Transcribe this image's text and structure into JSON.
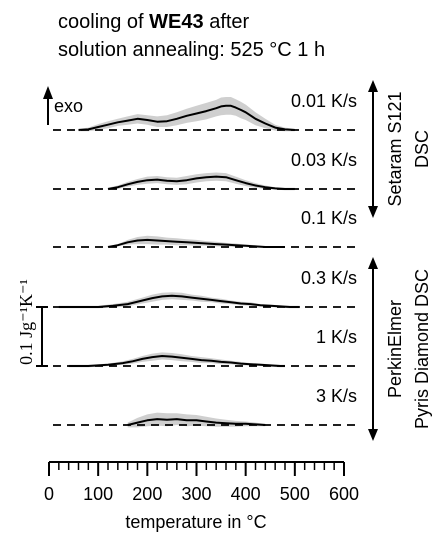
{
  "chart_data": {
    "type": "line",
    "title_line1_prefix": "cooling of ",
    "title_line1_bold": "WE43",
    "title_line1_suffix": " after",
    "title_line2": "solution annealing: 525 °C 1 h",
    "xlabel": "temperature in °C",
    "xlim": [
      0,
      600
    ],
    "xticks": [
      0,
      100,
      200,
      300,
      400,
      500,
      600
    ],
    "exo_label": "exo",
    "scale_bar_label": "0.1 Jg⁻¹K⁻¹",
    "scale_bar_value": 0.1,
    "instrument_groups": [
      {
        "line1": "Setaram S121",
        "line2": "DSC",
        "rates": [
          "0.01 K/s",
          "0.03 K/s",
          "0.1 K/s"
        ]
      },
      {
        "line1": "PerkinElmer",
        "line2": "Pyris Diamond DSC",
        "rates": [
          "0.3 K/s",
          "1 K/s",
          "3 K/s"
        ]
      }
    ],
    "series": [
      {
        "name": "0.01 K/s",
        "x": [
          60,
          80,
          100,
          120,
          140,
          160,
          180,
          200,
          220,
          240,
          260,
          280,
          300,
          320,
          340,
          350,
          360,
          370,
          380,
          390,
          400,
          420,
          440,
          460,
          480,
          500
        ],
        "y": [
          0.0,
          0.001,
          0.005,
          0.009,
          0.013,
          0.016,
          0.019,
          0.017,
          0.014,
          0.015,
          0.019,
          0.024,
          0.028,
          0.032,
          0.037,
          0.04,
          0.041,
          0.041,
          0.038,
          0.034,
          0.03,
          0.019,
          0.011,
          0.004,
          0.001,
          0.0
        ],
        "band": [
          0.002,
          0.003,
          0.005,
          0.006,
          0.006,
          0.007,
          0.008,
          0.008,
          0.009,
          0.01,
          0.011,
          0.012,
          0.013,
          0.014,
          0.014,
          0.015,
          0.015,
          0.015,
          0.014,
          0.014,
          0.013,
          0.011,
          0.008,
          0.005,
          0.003,
          0.002
        ]
      },
      {
        "name": "0.03 K/s",
        "x": [
          120,
          140,
          160,
          180,
          200,
          220,
          240,
          260,
          280,
          300,
          320,
          340,
          360,
          380,
          400,
          420,
          440,
          460,
          480,
          500
        ],
        "y": [
          0.0,
          0.003,
          0.008,
          0.012,
          0.015,
          0.016,
          0.014,
          0.013,
          0.015,
          0.018,
          0.02,
          0.021,
          0.02,
          0.015,
          0.01,
          0.006,
          0.003,
          0.001,
          0.0,
          0.0
        ],
        "band": [
          0.002,
          0.003,
          0.004,
          0.005,
          0.006,
          0.006,
          0.006,
          0.006,
          0.007,
          0.007,
          0.007,
          0.007,
          0.007,
          0.006,
          0.005,
          0.004,
          0.003,
          0.002,
          0.002,
          0.002
        ]
      },
      {
        "name": "0.1 K/s",
        "x": [
          120,
          140,
          160,
          180,
          200,
          220,
          240,
          260,
          280,
          300,
          320,
          340,
          360,
          380,
          400,
          420,
          440,
          460,
          480
        ],
        "y": [
          0.0,
          0.003,
          0.008,
          0.011,
          0.012,
          0.011,
          0.01,
          0.009,
          0.008,
          0.007,
          0.006,
          0.005,
          0.004,
          0.003,
          0.002,
          0.001,
          0.0,
          0.0,
          0.0
        ],
        "band": [
          0.001,
          0.002,
          0.004,
          0.006,
          0.007,
          0.007,
          0.006,
          0.006,
          0.005,
          0.005,
          0.004,
          0.004,
          0.003,
          0.003,
          0.002,
          0.002,
          0.001,
          0.001,
          0.001
        ]
      },
      {
        "name": "0.3 K/s",
        "x": [
          20,
          60,
          100,
          130,
          160,
          190,
          210,
          230,
          250,
          270,
          290,
          310,
          330,
          350,
          370,
          390,
          410,
          430,
          450,
          470,
          490,
          510
        ],
        "y": [
          0.0,
          0.0,
          0.0,
          0.002,
          0.005,
          0.011,
          0.015,
          0.018,
          0.019,
          0.018,
          0.016,
          0.014,
          0.012,
          0.01,
          0.008,
          0.006,
          0.005,
          0.003,
          0.002,
          0.001,
          0.0,
          0.0
        ],
        "band": [
          0.002,
          0.002,
          0.002,
          0.003,
          0.004,
          0.005,
          0.006,
          0.006,
          0.006,
          0.006,
          0.005,
          0.005,
          0.004,
          0.004,
          0.003,
          0.003,
          0.003,
          0.002,
          0.002,
          0.002,
          0.002,
          0.002
        ]
      },
      {
        "name": "1 K/s",
        "x": [
          40,
          80,
          120,
          150,
          170,
          190,
          210,
          230,
          250,
          270,
          290,
          310,
          330,
          350,
          370,
          390,
          410,
          430,
          450,
          470,
          480
        ],
        "y": [
          0.0,
          0.0,
          0.002,
          0.005,
          0.008,
          0.012,
          0.015,
          0.017,
          0.016,
          0.014,
          0.012,
          0.01,
          0.009,
          0.007,
          0.006,
          0.004,
          0.003,
          0.002,
          0.001,
          0.0,
          0.0
        ],
        "band": [
          0.002,
          0.002,
          0.002,
          0.003,
          0.004,
          0.005,
          0.006,
          0.006,
          0.006,
          0.006,
          0.005,
          0.005,
          0.004,
          0.004,
          0.003,
          0.003,
          0.002,
          0.002,
          0.002,
          0.002,
          0.002
        ]
      },
      {
        "name": "3 K/s",
        "x": [
          160,
          180,
          200,
          220,
          240,
          260,
          280,
          300,
          320,
          340,
          360,
          380,
          400,
          420,
          440
        ],
        "y": [
          0.0,
          0.004,
          0.008,
          0.01,
          0.009,
          0.01,
          0.008,
          0.008,
          0.006,
          0.004,
          0.003,
          0.002,
          0.002,
          0.001,
          0.0
        ],
        "band": [
          0.004,
          0.008,
          0.01,
          0.011,
          0.011,
          0.01,
          0.01,
          0.009,
          0.008,
          0.007,
          0.006,
          0.005,
          0.004,
          0.003,
          0.002
        ]
      }
    ]
  }
}
